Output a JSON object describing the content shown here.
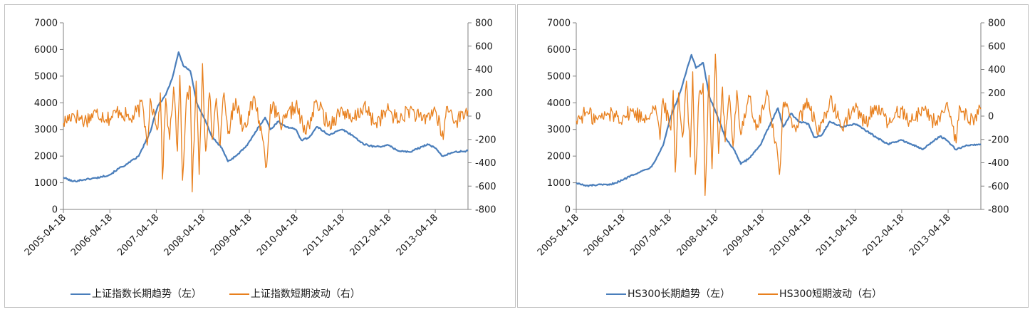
{
  "colors": {
    "trend": "#4a7ebb",
    "fluct": "#e8801e",
    "axis": "#808080"
  },
  "chart_data": [
    {
      "type": "line",
      "title": "",
      "x_tick_labels": [
        "2005-04-18",
        "2006-04-18",
        "2007-04-18",
        "2008-04-18",
        "2009-04-18",
        "2010-04-18",
        "2011-04-18",
        "2012-04-18",
        "2013-04-18"
      ],
      "x_range": [
        "2005-04-18",
        "2013-12-31"
      ],
      "y_left": {
        "range": [
          0,
          7000
        ],
        "ticks": [
          "0",
          "1000",
          "2000",
          "3000",
          "4000",
          "5000",
          "6000",
          "7000"
        ]
      },
      "y_right": {
        "range": [
          -800,
          800
        ],
        "ticks": [
          "-800",
          "-600",
          "-400",
          "-200",
          "0",
          "200",
          "400",
          "600",
          "800"
        ]
      },
      "legend_position": "bottom",
      "series": [
        {
          "name": "上证指数长期趋势（左）",
          "axis": "left",
          "points": [
            [
              "2005-04-18",
              1200
            ],
            [
              "2005-07-01",
              1050
            ],
            [
              "2005-10-01",
              1120
            ],
            [
              "2006-01-01",
              1180
            ],
            [
              "2006-04-18",
              1300
            ],
            [
              "2006-07-01",
              1550
            ],
            [
              "2006-09-01",
              1700
            ],
            [
              "2006-12-01",
              2000
            ],
            [
              "2007-03-01",
              2900
            ],
            [
              "2007-05-01",
              3900
            ],
            [
              "2007-07-01",
              4300
            ],
            [
              "2007-08-20",
              4900
            ],
            [
              "2007-10-10",
              5900
            ],
            [
              "2007-11-15",
              5400
            ],
            [
              "2008-01-10",
              5200
            ],
            [
              "2008-03-01",
              4000
            ],
            [
              "2008-05-01",
              3400
            ],
            [
              "2008-07-01",
              2700
            ],
            [
              "2008-09-15",
              2300
            ],
            [
              "2008-11-01",
              1800
            ],
            [
              "2009-01-01",
              2000
            ],
            [
              "2009-04-01",
              2400
            ],
            [
              "2009-07-01",
              3100
            ],
            [
              "2009-08-20",
              3450
            ],
            [
              "2009-10-01",
              3000
            ],
            [
              "2009-12-01",
              3300
            ],
            [
              "2010-02-01",
              3100
            ],
            [
              "2010-04-18",
              3000
            ],
            [
              "2010-06-01",
              2600
            ],
            [
              "2010-08-01",
              2700
            ],
            [
              "2010-10-01",
              3100
            ],
            [
              "2011-01-01",
              2800
            ],
            [
              "2011-04-18",
              3000
            ],
            [
              "2011-07-01",
              2800
            ],
            [
              "2011-10-01",
              2450
            ],
            [
              "2012-01-01",
              2350
            ],
            [
              "2012-04-18",
              2400
            ],
            [
              "2012-07-01",
              2200
            ],
            [
              "2012-10-01",
              2150
            ],
            [
              "2013-01-01",
              2350
            ],
            [
              "2013-02-15",
              2450
            ],
            [
              "2013-04-18",
              2300
            ],
            [
              "2013-06-15",
              2000
            ],
            [
              "2013-09-15",
              2150
            ],
            [
              "2013-12-31",
              2200
            ]
          ]
        },
        {
          "name": "上证指数短期波动（右）",
          "axis": "right",
          "points": [
            [
              "2005-04-18",
              -60
            ],
            [
              "2005-07-01",
              20
            ],
            [
              "2005-10-01",
              -40
            ],
            [
              "2006-01-01",
              30
            ],
            [
              "2006-04-18",
              -20
            ],
            [
              "2006-07-01",
              50
            ],
            [
              "2006-10-01",
              -30
            ],
            [
              "2007-01-01",
              100
            ],
            [
              "2007-02-05",
              -250
            ],
            [
              "2007-03-01",
              150
            ],
            [
              "2007-05-01",
              -100
            ],
            [
              "2007-05-20",
              200
            ],
            [
              "2007-06-05",
              -540
            ],
            [
              "2007-07-01",
              150
            ],
            [
              "2007-08-01",
              -200
            ],
            [
              "2007-09-01",
              250
            ],
            [
              "2007-10-01",
              -300
            ],
            [
              "2007-10-20",
              350
            ],
            [
              "2007-11-10",
              -550
            ],
            [
              "2007-12-10",
              150
            ],
            [
              "2008-01-10",
              250
            ],
            [
              "2008-01-25",
              -650
            ],
            [
              "2008-02-25",
              300
            ],
            [
              "2008-03-20",
              -500
            ],
            [
              "2008-04-15",
              450
            ],
            [
              "2008-05-10",
              -300
            ],
            [
              "2008-06-10",
              200
            ],
            [
              "2008-07-01",
              -200
            ],
            [
              "2008-08-01",
              150
            ],
            [
              "2008-09-01",
              -250
            ],
            [
              "2008-10-01",
              200
            ],
            [
              "2008-11-01",
              -150
            ],
            [
              "2009-01-01",
              150
            ],
            [
              "2009-03-01",
              -100
            ],
            [
              "2009-06-01",
              150
            ],
            [
              "2009-08-01",
              -200
            ],
            [
              "2009-09-01",
              -430
            ],
            [
              "2009-10-01",
              100
            ],
            [
              "2010-01-01",
              -80
            ],
            [
              "2010-04-18",
              100
            ],
            [
              "2010-07-01",
              -150
            ],
            [
              "2010-10-01",
              120
            ],
            [
              "2011-01-01",
              -80
            ],
            [
              "2011-04-18",
              60
            ],
            [
              "2011-07-01",
              -50
            ],
            [
              "2011-10-01",
              80
            ],
            [
              "2012-01-01",
              -60
            ],
            [
              "2012-04-18",
              50
            ],
            [
              "2012-07-01",
              -40
            ],
            [
              "2012-10-01",
              60
            ],
            [
              "2013-01-01",
              -40
            ],
            [
              "2013-04-18",
              50
            ],
            [
              "2013-06-20",
              -200
            ],
            [
              "2013-07-15",
              80
            ],
            [
              "2013-10-01",
              -40
            ],
            [
              "2013-12-31",
              50
            ]
          ]
        }
      ]
    },
    {
      "type": "line",
      "title": "",
      "x_tick_labels": [
        "2005-04-18",
        "2006-04-18",
        "2007-04-18",
        "2008-04-18",
        "2009-04-18",
        "2010-04-18",
        "2011-04-18",
        "2012-04-18",
        "2013-04-18"
      ],
      "x_range": [
        "2005-04-18",
        "2013-12-31"
      ],
      "y_left": {
        "range": [
          0,
          7000
        ],
        "ticks": [
          "0",
          "1000",
          "2000",
          "3000",
          "4000",
          "5000",
          "6000",
          "7000"
        ]
      },
      "y_right": {
        "range": [
          -800,
          800
        ],
        "ticks": [
          "-800",
          "-600",
          "-400",
          "-200",
          "0",
          "200",
          "400",
          "600",
          "800"
        ]
      },
      "legend_position": "bottom",
      "series": [
        {
          "name": "HS300长期趋势（左）",
          "axis": "left",
          "points": [
            [
              "2005-04-18",
              1000
            ],
            [
              "2005-07-01",
              880
            ],
            [
              "2005-10-01",
              920
            ],
            [
              "2006-01-01",
              920
            ],
            [
              "2006-04-18",
              1100
            ],
            [
              "2006-07-01",
              1300
            ],
            [
              "2006-09-01",
              1400
            ],
            [
              "2006-12-01",
              1600
            ],
            [
              "2007-03-01",
              2400
            ],
            [
              "2007-05-01",
              3500
            ],
            [
              "2007-07-01",
              4200
            ],
            [
              "2007-08-20",
              5000
            ],
            [
              "2007-10-10",
              5800
            ],
            [
              "2007-11-15",
              5300
            ],
            [
              "2008-01-10",
              5500
            ],
            [
              "2008-03-01",
              4200
            ],
            [
              "2008-05-01",
              3500
            ],
            [
              "2008-07-01",
              2700
            ],
            [
              "2008-09-15",
              2200
            ],
            [
              "2008-11-01",
              1700
            ],
            [
              "2009-01-01",
              1900
            ],
            [
              "2009-04-01",
              2400
            ],
            [
              "2009-07-01",
              3300
            ],
            [
              "2009-08-20",
              3800
            ],
            [
              "2009-10-01",
              3100
            ],
            [
              "2009-12-01",
              3600
            ],
            [
              "2010-02-01",
              3300
            ],
            [
              "2010-04-18",
              3200
            ],
            [
              "2010-06-01",
              2700
            ],
            [
              "2010-08-01",
              2800
            ],
            [
              "2010-10-01",
              3300
            ],
            [
              "2011-01-01",
              3100
            ],
            [
              "2011-04-18",
              3200
            ],
            [
              "2011-07-01",
              3000
            ],
            [
              "2011-10-01",
              2700
            ],
            [
              "2012-01-01",
              2450
            ],
            [
              "2012-04-18",
              2600
            ],
            [
              "2012-07-01",
              2450
            ],
            [
              "2012-10-01",
              2250
            ],
            [
              "2013-01-01",
              2600
            ],
            [
              "2013-02-15",
              2750
            ],
            [
              "2013-04-18",
              2550
            ],
            [
              "2013-06-15",
              2250
            ],
            [
              "2013-09-15",
              2400
            ],
            [
              "2013-12-31",
              2450
            ]
          ]
        },
        {
          "name": "HS300短期波动（右）",
          "axis": "right",
          "points": [
            [
              "2005-04-18",
              -40
            ],
            [
              "2005-07-01",
              30
            ],
            [
              "2005-10-01",
              -30
            ],
            [
              "2006-01-01",
              20
            ],
            [
              "2006-04-18",
              -10
            ],
            [
              "2006-07-01",
              40
            ],
            [
              "2006-10-01",
              -20
            ],
            [
              "2007-01-01",
              90
            ],
            [
              "2007-02-05",
              -200
            ],
            [
              "2007-03-01",
              150
            ],
            [
              "2007-05-01",
              -120
            ],
            [
              "2007-05-20",
              220
            ],
            [
              "2007-06-05",
              -480
            ],
            [
              "2007-07-01",
              200
            ],
            [
              "2007-08-01",
              -180
            ],
            [
              "2007-09-01",
              300
            ],
            [
              "2007-10-01",
              -350
            ],
            [
              "2007-10-20",
              380
            ],
            [
              "2007-11-10",
              -500
            ],
            [
              "2007-12-10",
              200
            ],
            [
              "2008-01-10",
              280
            ],
            [
              "2008-01-25",
              -680
            ],
            [
              "2008-02-25",
              350
            ],
            [
              "2008-03-20",
              -450
            ],
            [
              "2008-04-15",
              530
            ],
            [
              "2008-05-10",
              -320
            ],
            [
              "2008-06-10",
              250
            ],
            [
              "2008-07-01",
              -220
            ],
            [
              "2008-08-01",
              180
            ],
            [
              "2008-09-01",
              -260
            ],
            [
              "2008-10-01",
              220
            ],
            [
              "2008-11-01",
              -160
            ],
            [
              "2009-01-01",
              180
            ],
            [
              "2009-03-01",
              -120
            ],
            [
              "2009-06-01",
              180
            ],
            [
              "2009-08-01",
              -220
            ],
            [
              "2009-09-01",
              -500
            ],
            [
              "2009-10-01",
              120
            ],
            [
              "2010-01-01",
              -100
            ],
            [
              "2010-04-18",
              120
            ],
            [
              "2010-07-01",
              -160
            ],
            [
              "2010-10-01",
              140
            ],
            [
              "2011-01-01",
              -90
            ],
            [
              "2011-04-18",
              70
            ],
            [
              "2011-07-01",
              -60
            ],
            [
              "2011-10-01",
              90
            ],
            [
              "2012-01-01",
              -70
            ],
            [
              "2012-04-18",
              60
            ],
            [
              "2012-07-01",
              -50
            ],
            [
              "2012-10-01",
              70
            ],
            [
              "2013-01-01",
              -50
            ],
            [
              "2013-04-18",
              60
            ],
            [
              "2013-06-20",
              -230
            ],
            [
              "2013-07-15",
              90
            ],
            [
              "2013-10-01",
              -50
            ],
            [
              "2013-12-31",
              60
            ]
          ]
        }
      ]
    }
  ]
}
